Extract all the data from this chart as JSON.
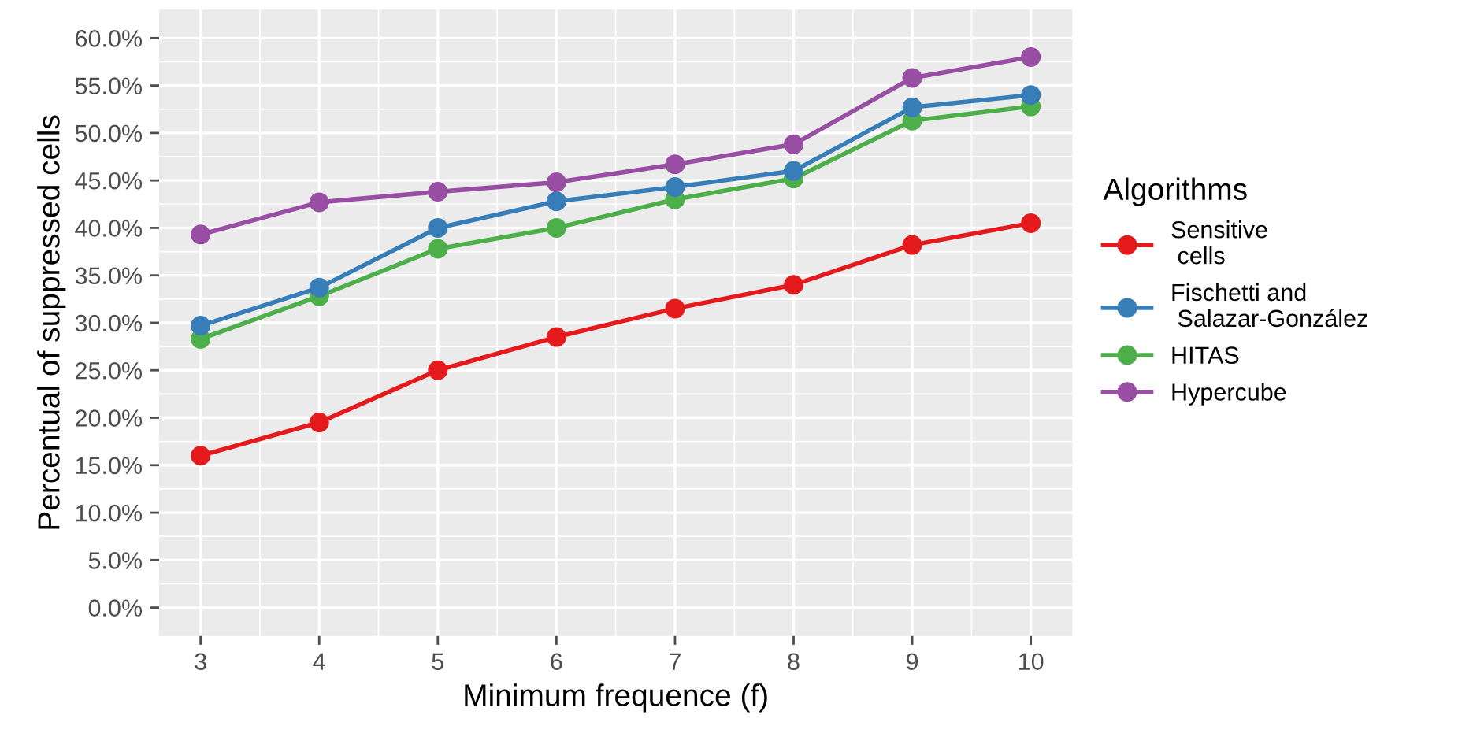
{
  "chart_data": {
    "type": "line",
    "xlabel": "Minimum frequence (f)",
    "ylabel": "Percentual of suppressed cells",
    "legend_title": "Algorithms",
    "x": [
      3,
      4,
      5,
      6,
      7,
      8,
      9,
      10
    ],
    "series": [
      {
        "name": "Sensitive\n cells",
        "color": "#e41a1c",
        "values": [
          16.0,
          19.5,
          25.0,
          28.5,
          31.5,
          34.0,
          38.2,
          40.5
        ]
      },
      {
        "name": "Fischetti and\n Salazar-González",
        "color": "#377eb8",
        "values": [
          29.7,
          33.7,
          40.0,
          42.8,
          44.3,
          46.0,
          52.7,
          54.0
        ]
      },
      {
        "name": "HITAS",
        "color": "#4daf4a",
        "values": [
          28.3,
          32.8,
          37.8,
          40.0,
          43.0,
          45.2,
          51.3,
          52.8
        ]
      },
      {
        "name": "Hypercube",
        "color": "#984ea3",
        "values": [
          39.3,
          42.7,
          43.8,
          44.8,
          46.7,
          48.8,
          55.8,
          58.0
        ]
      }
    ],
    "xlim": [
      2.65,
      10.35
    ],
    "xticks": [
      3,
      4,
      5,
      6,
      7,
      8,
      9,
      10
    ],
    "ylim": [
      -3,
      63
    ],
    "yticks": [
      {
        "value": 0,
        "label": "0.0%"
      },
      {
        "value": 5,
        "label": "5.0%"
      },
      {
        "value": 10,
        "label": "10.0%"
      },
      {
        "value": 15,
        "label": "15.0%"
      },
      {
        "value": 20,
        "label": "20.0%"
      },
      {
        "value": 25,
        "label": "25.0%"
      },
      {
        "value": 30,
        "label": "30.0%"
      },
      {
        "value": 35,
        "label": "35.0%"
      },
      {
        "value": 40,
        "label": "40.0%"
      },
      {
        "value": 45,
        "label": "45.0%"
      },
      {
        "value": 50,
        "label": "50.0%"
      },
      {
        "value": 55,
        "label": "55.0%"
      },
      {
        "value": 60,
        "label": "60.0%"
      }
    ],
    "grid": true,
    "legend": "right",
    "marker": "circle",
    "line_style": "solid"
  }
}
